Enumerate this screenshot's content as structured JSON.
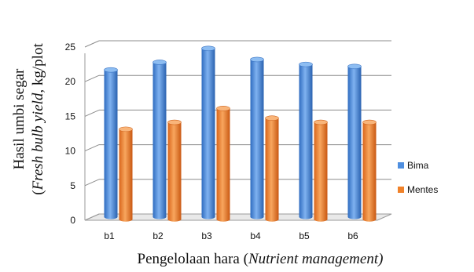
{
  "chart_data": {
    "type": "bar",
    "categories": [
      "b1",
      "b2",
      "b3",
      "b4",
      "b5",
      "b6"
    ],
    "series": [
      {
        "name": "Bima",
        "values": [
          21.2,
          22.3,
          24.3,
          22.7,
          22.0,
          21.7
        ],
        "color": "#4f8fe0"
      },
      {
        "name": "Mentes",
        "values": [
          13.0,
          14.0,
          16.0,
          14.6,
          14.0,
          14.0
        ],
        "color": "#f0822a"
      }
    ],
    "ylim": [
      0,
      25
    ],
    "yticks": [
      "0",
      "5",
      "10",
      "15",
      "20",
      "25"
    ],
    "ylabel_line1": "Hasil umbi segar",
    "ylabel_line2_italic": "Fresh bulb yield",
    "ylabel_line2_suffix": ", kg/plot",
    "xlabel_main": "Pengelolaan hara (",
    "xlabel_italic": "Nutrient management)",
    "grid": true,
    "legend_position": "right",
    "style": "3d-cylinder"
  }
}
